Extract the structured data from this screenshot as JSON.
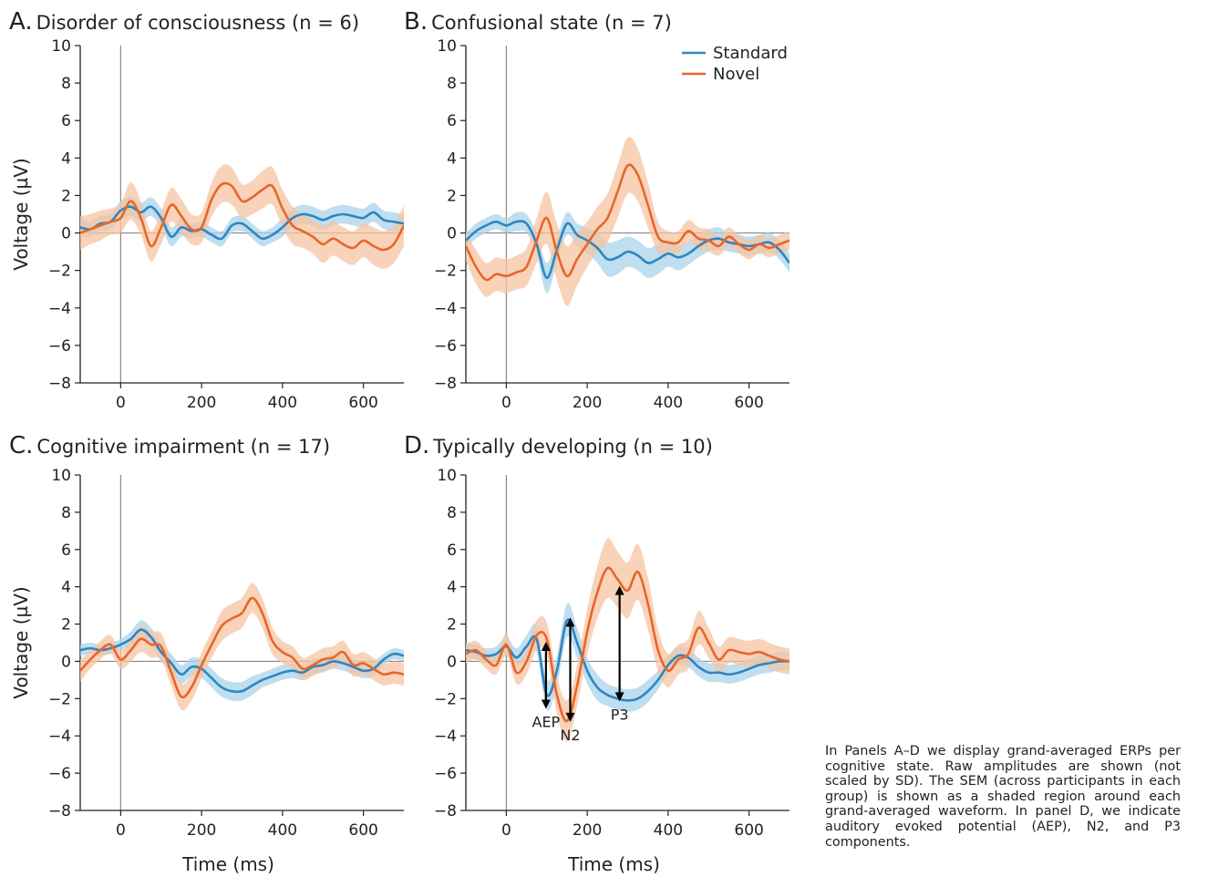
{
  "colors": {
    "standard": "#2e86c1",
    "standard_shade": "#a9d3ea",
    "novel": "#e8662a",
    "novel_shade": "#f6c4a1",
    "axis": "#222222",
    "zero_line": "#888888"
  },
  "caption": "In Panels A–D we display grand-averaged ERPs per cognitive state. Raw amplitudes are shown (not scaled by SD). The SEM (across participants in each group) is shown as a shaded region around each grand-averaged waveform. In panel D, we indicate auditory evoked potential (AEP), N2, and P3 components.",
  "chart_data": [
    {
      "type": "line",
      "panel": "A.",
      "title": "Disorder of consciousness (n = 6)",
      "ylabel": "Voltage (µV)",
      "xlabel": "",
      "xlim": [
        -100,
        700
      ],
      "ylim": [
        -8,
        10
      ],
      "xticks": [
        0,
        200,
        400,
        600
      ],
      "yticks": [
        -8,
        -6,
        -4,
        -2,
        0,
        2,
        4,
        6,
        8,
        10
      ],
      "ytick_labels": [
        "−8",
        "−6",
        "−4",
        "−2",
        "0",
        "2",
        "4",
        "6",
        "8",
        "10"
      ],
      "legend": null,
      "series": [
        {
          "name": "Standard",
          "x": [
            -100,
            -75,
            -50,
            -25,
            0,
            25,
            50,
            75,
            100,
            125,
            150,
            175,
            200,
            225,
            250,
            275,
            300,
            325,
            350,
            375,
            400,
            425,
            450,
            475,
            500,
            525,
            550,
            575,
            600,
            625,
            650,
            675,
            700
          ],
          "y": [
            0.3,
            0.2,
            0.5,
            0.6,
            1.2,
            1.4,
            1.1,
            1.4,
            0.8,
            -0.2,
            0.3,
            0.1,
            0.2,
            -0.1,
            -0.3,
            0.4,
            0.5,
            0.1,
            -0.3,
            -0.1,
            0.3,
            0.8,
            1.0,
            0.9,
            0.7,
            0.9,
            1.0,
            0.9,
            0.8,
            1.1,
            0.7,
            0.6,
            0.5
          ],
          "sem": [
            0.5,
            0.4,
            0.4,
            0.4,
            0.5,
            0.5,
            0.5,
            0.5,
            0.5,
            0.5,
            0.5,
            0.4,
            0.4,
            0.4,
            0.4,
            0.4,
            0.4,
            0.4,
            0.4,
            0.4,
            0.5,
            0.5,
            0.5,
            0.5,
            0.5,
            0.5,
            0.5,
            0.5,
            0.5,
            0.5,
            0.5,
            0.5,
            0.5
          ]
        },
        {
          "name": "Novel",
          "x": [
            -100,
            -75,
            -50,
            -25,
            0,
            25,
            50,
            75,
            100,
            125,
            150,
            175,
            200,
            225,
            250,
            275,
            300,
            325,
            350,
            375,
            400,
            425,
            450,
            475,
            500,
            525,
            550,
            575,
            600,
            625,
            650,
            675,
            700
          ],
          "y": [
            0.0,
            0.2,
            0.4,
            0.6,
            0.8,
            1.7,
            0.8,
            -0.7,
            0.3,
            1.5,
            0.9,
            0.2,
            0.3,
            1.8,
            2.6,
            2.5,
            1.7,
            1.9,
            2.3,
            2.5,
            1.3,
            0.4,
            0.1,
            -0.2,
            -0.6,
            -0.3,
            -0.6,
            -0.8,
            -0.4,
            -0.7,
            -0.9,
            -0.6,
            0.4
          ],
          "sem": [
            0.9,
            0.8,
            0.8,
            0.7,
            0.8,
            1.0,
            0.9,
            0.8,
            0.9,
            0.9,
            0.9,
            0.8,
            0.8,
            0.9,
            1.0,
            1.0,
            0.9,
            0.9,
            1.0,
            1.0,
            1.0,
            1.0,
            0.9,
            0.9,
            1.0,
            0.9,
            0.9,
            0.9,
            0.9,
            1.0,
            1.0,
            1.0,
            1.1
          ]
        }
      ],
      "annotations": []
    },
    {
      "type": "line",
      "panel": "B.",
      "title": "Confusional state (n = 7)",
      "ylabel": "",
      "xlabel": "",
      "xlim": [
        -100,
        700
      ],
      "ylim": [
        -8,
        10
      ],
      "xticks": [
        0,
        200,
        400,
        600
      ],
      "yticks": [
        -8,
        -6,
        -4,
        -2,
        0,
        2,
        4,
        6,
        8,
        10
      ],
      "ytick_labels": [
        "−8",
        "−6",
        "−4",
        "−2",
        "0",
        "2",
        "4",
        "6",
        "8",
        "10"
      ],
      "legend": {
        "position": "top-right",
        "entries": [
          "Standard",
          "Novel"
        ]
      },
      "series": [
        {
          "name": "Standard",
          "x": [
            -100,
            -75,
            -50,
            -25,
            0,
            25,
            50,
            75,
            100,
            125,
            150,
            175,
            200,
            225,
            250,
            275,
            300,
            325,
            350,
            375,
            400,
            425,
            450,
            475,
            500,
            525,
            550,
            575,
            600,
            625,
            650,
            675,
            700
          ],
          "y": [
            -0.4,
            0.1,
            0.4,
            0.6,
            0.4,
            0.6,
            0.5,
            -0.6,
            -2.4,
            -0.9,
            0.5,
            -0.1,
            -0.4,
            -0.8,
            -1.4,
            -1.3,
            -1.0,
            -1.2,
            -1.6,
            -1.4,
            -1.1,
            -1.3,
            -1.1,
            -0.7,
            -0.4,
            -0.3,
            -0.5,
            -0.6,
            -0.7,
            -0.6,
            -0.5,
            -0.9,
            -1.6
          ],
          "sem": [
            0.4,
            0.4,
            0.4,
            0.4,
            0.4,
            0.5,
            0.5,
            0.6,
            0.8,
            0.7,
            0.6,
            0.6,
            0.7,
            0.8,
            0.9,
            0.9,
            0.8,
            0.8,
            0.8,
            0.8,
            0.7,
            0.7,
            0.6,
            0.6,
            0.6,
            0.6,
            0.5,
            0.5,
            0.5,
            0.5,
            0.5,
            0.5,
            0.5
          ]
        },
        {
          "name": "Novel",
          "x": [
            -100,
            -75,
            -50,
            -25,
            0,
            25,
            50,
            75,
            100,
            125,
            150,
            175,
            200,
            225,
            250,
            275,
            300,
            325,
            350,
            375,
            400,
            425,
            450,
            475,
            500,
            525,
            550,
            575,
            600,
            625,
            650,
            675,
            700
          ],
          "y": [
            -0.7,
            -1.8,
            -2.5,
            -2.2,
            -2.3,
            -2.1,
            -1.8,
            -0.4,
            0.8,
            -1.0,
            -2.3,
            -1.4,
            -0.6,
            0.2,
            0.8,
            2.2,
            3.6,
            3.1,
            1.5,
            -0.2,
            -0.5,
            -0.5,
            0.1,
            -0.3,
            -0.4,
            -0.7,
            -0.2,
            -0.6,
            -0.9,
            -0.6,
            -0.8,
            -0.6,
            -0.4
          ],
          "sem": [
            0.8,
            0.9,
            0.9,
            0.9,
            0.9,
            0.9,
            1.0,
            1.2,
            1.4,
            1.5,
            1.6,
            1.4,
            1.2,
            1.2,
            1.3,
            1.4,
            1.5,
            1.4,
            1.2,
            0.8,
            0.6,
            0.6,
            0.6,
            0.6,
            0.6,
            0.5,
            0.5,
            0.5,
            0.5,
            0.5,
            0.5,
            0.5,
            0.5
          ]
        }
      ],
      "annotations": []
    },
    {
      "type": "line",
      "panel": "C.",
      "title": "Cognitive impairment (n = 17)",
      "ylabel": "Voltage (µV)",
      "xlabel": "Time (ms)",
      "xlim": [
        -100,
        700
      ],
      "ylim": [
        -8,
        10
      ],
      "xticks": [
        0,
        200,
        400,
        600
      ],
      "yticks": [
        -8,
        -6,
        -4,
        -2,
        0,
        2,
        4,
        6,
        8,
        10
      ],
      "ytick_labels": [
        "−8",
        "−6",
        "−4",
        "−2",
        "0",
        "2",
        "4",
        "6",
        "8",
        "10"
      ],
      "legend": null,
      "series": [
        {
          "name": "Standard",
          "x": [
            -100,
            -75,
            -50,
            -25,
            0,
            25,
            50,
            75,
            100,
            125,
            150,
            175,
            200,
            225,
            250,
            275,
            300,
            325,
            350,
            375,
            400,
            425,
            450,
            475,
            500,
            525,
            550,
            575,
            600,
            625,
            650,
            675,
            700
          ],
          "y": [
            0.6,
            0.7,
            0.6,
            0.7,
            0.9,
            1.2,
            1.7,
            1.3,
            0.5,
            -0.1,
            -0.7,
            -0.3,
            -0.4,
            -0.9,
            -1.4,
            -1.6,
            -1.6,
            -1.3,
            -1.0,
            -0.8,
            -0.6,
            -0.5,
            -0.6,
            -0.3,
            -0.2,
            0.0,
            -0.1,
            -0.3,
            -0.5,
            -0.4,
            0.1,
            0.4,
            0.3
          ],
          "sem": [
            0.3,
            0.3,
            0.3,
            0.3,
            0.3,
            0.4,
            0.5,
            0.5,
            0.5,
            0.5,
            0.5,
            0.5,
            0.5,
            0.5,
            0.5,
            0.5,
            0.5,
            0.5,
            0.4,
            0.4,
            0.4,
            0.4,
            0.4,
            0.4,
            0.4,
            0.4,
            0.4,
            0.4,
            0.4,
            0.4,
            0.3,
            0.3,
            0.3
          ]
        },
        {
          "name": "Novel",
          "x": [
            -100,
            -75,
            -50,
            -25,
            0,
            25,
            50,
            75,
            100,
            125,
            150,
            175,
            200,
            225,
            250,
            275,
            300,
            325,
            350,
            375,
            400,
            425,
            450,
            475,
            500,
            525,
            550,
            575,
            600,
            625,
            650,
            675,
            700
          ],
          "y": [
            -0.5,
            0.1,
            0.6,
            0.9,
            0.1,
            0.6,
            1.2,
            0.9,
            0.8,
            -0.6,
            -1.9,
            -1.4,
            -0.2,
            0.9,
            1.9,
            2.3,
            2.6,
            3.4,
            2.6,
            1.1,
            0.5,
            0.2,
            -0.4,
            -0.2,
            0.1,
            0.2,
            0.5,
            -0.2,
            -0.1,
            -0.4,
            -0.7,
            -0.6,
            -0.7
          ],
          "sem": [
            0.6,
            0.5,
            0.5,
            0.5,
            0.5,
            0.6,
            0.7,
            0.7,
            0.7,
            0.7,
            0.7,
            0.7,
            0.7,
            0.7,
            0.8,
            0.8,
            0.8,
            0.8,
            0.8,
            0.7,
            0.6,
            0.6,
            0.6,
            0.6,
            0.6,
            0.6,
            0.6,
            0.6,
            0.6,
            0.6,
            0.6,
            0.6,
            0.6
          ]
        }
      ],
      "annotations": []
    },
    {
      "type": "line",
      "panel": "D.",
      "title": "Typically developing (n = 10)",
      "ylabel": "",
      "xlabel": "Time (ms)",
      "xlim": [
        -100,
        700
      ],
      "ylim": [
        -8,
        10
      ],
      "xticks": [
        0,
        200,
        400,
        600
      ],
      "yticks": [
        -8,
        -6,
        -4,
        -2,
        0,
        2,
        4,
        6,
        8,
        10
      ],
      "ytick_labels": [
        "−8",
        "−6",
        "−4",
        "−2",
        "0",
        "2",
        "4",
        "6",
        "8",
        "10"
      ],
      "legend": null,
      "series": [
        {
          "name": "Standard",
          "x": [
            -100,
            -75,
            -50,
            -25,
            0,
            25,
            50,
            75,
            100,
            125,
            150,
            175,
            200,
            225,
            250,
            275,
            300,
            325,
            350,
            375,
            400,
            425,
            450,
            475,
            500,
            525,
            550,
            575,
            600,
            625,
            650,
            675,
            700
          ],
          "y": [
            0.6,
            0.5,
            0.3,
            0.4,
            0.8,
            0.2,
            0.8,
            1.2,
            -1.8,
            -0.5,
            2.2,
            1.0,
            -0.5,
            -1.4,
            -1.8,
            -2.0,
            -2.1,
            -2.0,
            -1.6,
            -1.0,
            -0.2,
            0.3,
            0.2,
            -0.3,
            -0.6,
            -0.6,
            -0.7,
            -0.6,
            -0.4,
            -0.2,
            -0.1,
            0.0,
            0.0
          ],
          "sem": [
            0.4,
            0.4,
            0.4,
            0.4,
            0.5,
            0.5,
            0.6,
            0.7,
            0.8,
            0.8,
            0.9,
            0.8,
            0.7,
            0.7,
            0.6,
            0.6,
            0.6,
            0.6,
            0.6,
            0.5,
            0.5,
            0.5,
            0.5,
            0.5,
            0.5,
            0.5,
            0.5,
            0.5,
            0.5,
            0.5,
            0.5,
            0.5,
            0.5
          ]
        },
        {
          "name": "Novel",
          "x": [
            -100,
            -75,
            -50,
            -25,
            0,
            25,
            50,
            75,
            100,
            125,
            150,
            175,
            200,
            225,
            250,
            275,
            300,
            325,
            350,
            375,
            400,
            425,
            450,
            475,
            500,
            525,
            550,
            575,
            600,
            625,
            650,
            675,
            700
          ],
          "y": [
            0.4,
            0.6,
            0.1,
            -0.2,
            0.9,
            -0.6,
            0.0,
            1.4,
            1.2,
            -1.8,
            -3.2,
            -1.3,
            1.6,
            3.7,
            5.0,
            4.4,
            3.8,
            4.8,
            3.1,
            0.6,
            -0.5,
            0.1,
            0.4,
            1.8,
            1.0,
            0.1,
            0.6,
            0.5,
            0.4,
            0.5,
            0.3,
            0.1,
            0.0
          ],
          "sem": [
            0.5,
            0.5,
            0.5,
            0.5,
            0.6,
            0.6,
            0.7,
            0.8,
            0.9,
            1.0,
            1.1,
            1.1,
            1.2,
            1.4,
            1.6,
            1.5,
            1.5,
            1.5,
            1.4,
            1.1,
            0.9,
            0.8,
            0.8,
            0.9,
            0.8,
            0.7,
            0.7,
            0.7,
            0.7,
            0.7,
            0.7,
            0.7,
            0.7
          ]
        }
      ],
      "annotations": [
        {
          "label": "AEP",
          "x": 98,
          "y_from": 1.0,
          "y_to": -2.5
        },
        {
          "label": "N2",
          "x": 158,
          "y_from": 2.3,
          "y_to": -3.2
        },
        {
          "label": "P3",
          "x": 280,
          "y_from": 4.0,
          "y_to": -2.1
        }
      ]
    }
  ]
}
